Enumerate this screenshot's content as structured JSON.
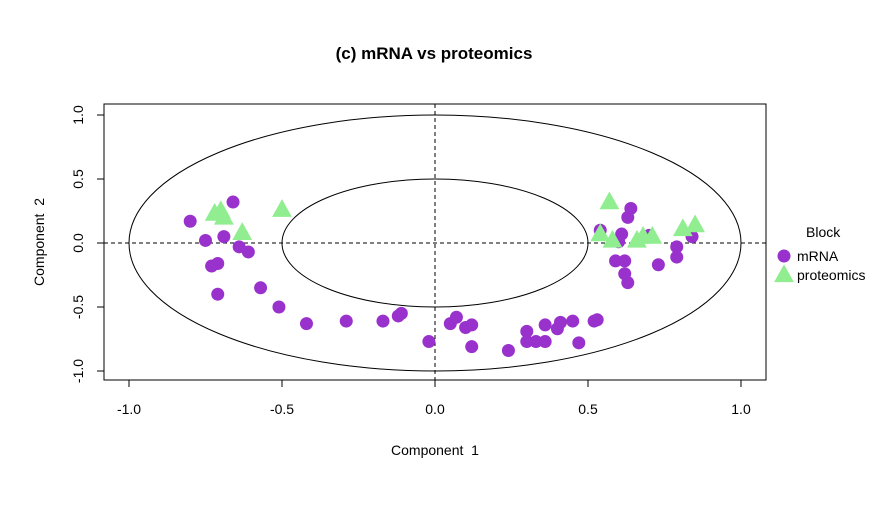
{
  "chart_data": {
    "type": "scatter",
    "title": "(c) mRNA vs proteomics",
    "xlabel": "Component  1",
    "ylabel": "Component  2",
    "xlim": [
      -1.1,
      1.1
    ],
    "ylim": [
      -1.1,
      1.1
    ],
    "x_ticks": [
      "-1.0",
      "-0.5",
      "0.0",
      "0.5",
      "1.0"
    ],
    "y_ticks": [
      "-1.0",
      "-0.5",
      "0.0",
      "0.5",
      "1.0"
    ],
    "circles": [
      0.5,
      1.0
    ],
    "reference_lines": {
      "x": 0,
      "y": 0,
      "style": "dashed"
    },
    "legend": {
      "title": "Block",
      "placement": "right"
    },
    "series": [
      {
        "name": "mRNA",
        "color": "#9932CC",
        "marker": "circle",
        "points": [
          [
            -0.8,
            0.17
          ],
          [
            -0.75,
            0.02
          ],
          [
            -0.73,
            -0.18
          ],
          [
            -0.71,
            -0.16
          ],
          [
            -0.71,
            -0.4
          ],
          [
            -0.69,
            0.05
          ],
          [
            -0.66,
            0.32
          ],
          [
            -0.64,
            -0.03
          ],
          [
            -0.61,
            -0.07
          ],
          [
            -0.57,
            -0.35
          ],
          [
            -0.51,
            -0.5
          ],
          [
            -0.42,
            -0.63
          ],
          [
            -0.29,
            -0.61
          ],
          [
            -0.17,
            -0.61
          ],
          [
            -0.12,
            -0.57
          ],
          [
            -0.11,
            -0.55
          ],
          [
            -0.02,
            -0.77
          ],
          [
            0.05,
            -0.63
          ],
          [
            0.07,
            -0.58
          ],
          [
            0.1,
            -0.66
          ],
          [
            0.12,
            -0.64
          ],
          [
            0.12,
            -0.81
          ],
          [
            0.24,
            -0.84
          ],
          [
            0.3,
            -0.69
          ],
          [
            0.3,
            -0.77
          ],
          [
            0.33,
            -0.77
          ],
          [
            0.36,
            -0.77
          ],
          [
            0.36,
            -0.64
          ],
          [
            0.4,
            -0.67
          ],
          [
            0.41,
            -0.62
          ],
          [
            0.45,
            -0.61
          ],
          [
            0.47,
            -0.78
          ],
          [
            0.52,
            -0.61
          ],
          [
            0.53,
            -0.6
          ],
          [
            0.54,
            0.1
          ],
          [
            0.59,
            -0.14
          ],
          [
            0.6,
            0.01
          ],
          [
            0.61,
            0.07
          ],
          [
            0.62,
            -0.14
          ],
          [
            0.62,
            -0.24
          ],
          [
            0.63,
            -0.31
          ],
          [
            0.63,
            0.2
          ],
          [
            0.64,
            0.27
          ],
          [
            0.7,
            0.06
          ],
          [
            0.73,
            -0.17
          ],
          [
            0.79,
            -0.03
          ],
          [
            0.79,
            -0.11
          ],
          [
            0.84,
            0.05
          ]
        ]
      },
      {
        "name": "proteomics",
        "color": "#90EE90",
        "marker": "triangle",
        "points": [
          [
            -0.72,
            0.23
          ],
          [
            -0.7,
            0.25
          ],
          [
            -0.69,
            0.2
          ],
          [
            -0.63,
            0.08
          ],
          [
            -0.5,
            0.26
          ],
          [
            0.54,
            0.07
          ],
          [
            0.57,
            0.32
          ],
          [
            0.58,
            0.02
          ],
          [
            0.66,
            0.02
          ],
          [
            0.68,
            0.05
          ],
          [
            0.71,
            0.05
          ],
          [
            0.81,
            0.11
          ],
          [
            0.85,
            0.14
          ]
        ]
      }
    ]
  }
}
